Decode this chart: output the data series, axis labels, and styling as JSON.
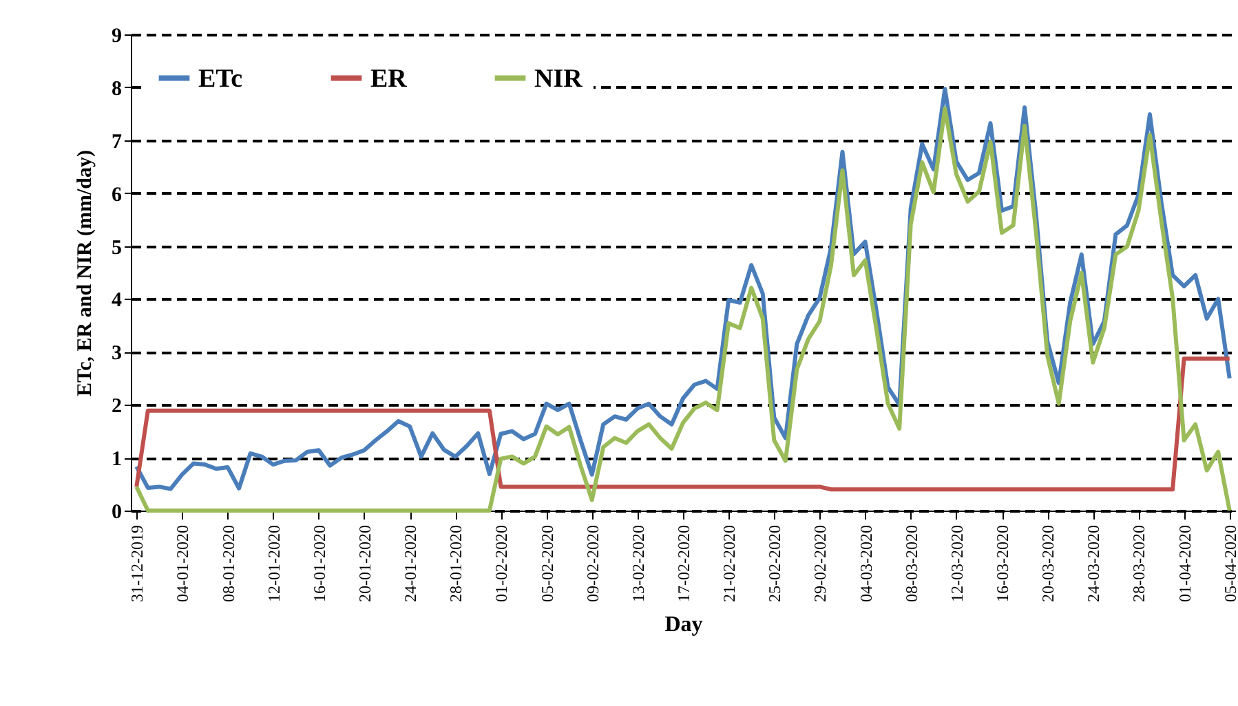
{
  "chart_data": {
    "type": "line",
    "xlabel": "Day",
    "ylabel": "ETc, ER and NIR (mm/day)",
    "x": [
      "2019-12-31",
      "2020-01-01",
      "2020-01-02",
      "2020-01-03",
      "2020-01-04",
      "2020-01-05",
      "2020-01-06",
      "2020-01-07",
      "2020-01-08",
      "2020-01-09",
      "2020-01-10",
      "2020-01-11",
      "2020-01-12",
      "2020-01-13",
      "2020-01-14",
      "2020-01-15",
      "2020-01-16",
      "2020-01-17",
      "2020-01-18",
      "2020-01-19",
      "2020-01-20",
      "2020-01-21",
      "2020-01-22",
      "2020-01-23",
      "2020-01-24",
      "2020-01-25",
      "2020-01-26",
      "2020-01-27",
      "2020-01-28",
      "2020-01-29",
      "2020-01-30",
      "2020-01-31",
      "2020-02-01",
      "2020-02-02",
      "2020-02-03",
      "2020-02-04",
      "2020-02-05",
      "2020-02-06",
      "2020-02-07",
      "2020-02-08",
      "2020-02-09",
      "2020-02-10",
      "2020-02-11",
      "2020-02-12",
      "2020-02-13",
      "2020-02-14",
      "2020-02-15",
      "2020-02-16",
      "2020-02-17",
      "2020-02-18",
      "2020-02-19",
      "2020-02-20",
      "2020-02-21",
      "2020-02-22",
      "2020-02-23",
      "2020-02-24",
      "2020-02-25",
      "2020-02-26",
      "2020-02-27",
      "2020-02-28",
      "2020-02-29",
      "2020-03-01",
      "2020-03-02",
      "2020-03-03",
      "2020-03-04",
      "2020-03-05",
      "2020-03-06",
      "2020-03-07",
      "2020-03-08",
      "2020-03-09",
      "2020-03-10",
      "2020-03-11",
      "2020-03-12",
      "2020-03-13",
      "2020-03-14",
      "2020-03-15",
      "2020-03-16",
      "2020-03-17",
      "2020-03-18",
      "2020-03-19",
      "2020-03-20",
      "2020-03-21",
      "2020-03-22",
      "2020-03-23",
      "2020-03-24",
      "2020-03-25",
      "2020-03-26",
      "2020-03-27",
      "2020-03-28",
      "2020-03-29",
      "2020-03-30",
      "2020-03-31",
      "2020-04-01",
      "2020-04-02",
      "2020-04-03",
      "2020-04-04",
      "2020-04-05"
    ],
    "series": [
      {
        "name": "ETc",
        "color": "#4a7ebb",
        "values": [
          0.83,
          0.43,
          0.45,
          0.41,
          0.68,
          0.89,
          0.87,
          0.79,
          0.82,
          0.42,
          1.08,
          1.02,
          0.87,
          0.94,
          0.95,
          1.11,
          1.14,
          0.85,
          1.0,
          1.06,
          1.14,
          1.33,
          1.5,
          1.69,
          1.59,
          1.02,
          1.46,
          1.15,
          1.02,
          1.22,
          1.46,
          0.69,
          1.45,
          1.5,
          1.35,
          1.45,
          2.02,
          1.9,
          2.02,
          1.33,
          0.68,
          1.63,
          1.78,
          1.72,
          1.93,
          2.02,
          1.78,
          1.63,
          2.12,
          2.38,
          2.45,
          2.3,
          3.98,
          3.93,
          4.64,
          4.1,
          1.76,
          1.37,
          3.15,
          3.69,
          4.02,
          4.97,
          6.78,
          4.85,
          5.08,
          3.76,
          2.33,
          2.0,
          5.71,
          6.93,
          6.45,
          7.97,
          6.6,
          6.25,
          6.38,
          7.32,
          5.67,
          5.75,
          7.62,
          5.6,
          3.2,
          2.41,
          3.93,
          4.84,
          3.15,
          3.58,
          5.22,
          5.39,
          5.97,
          7.49,
          5.84,
          4.45,
          4.24,
          4.45,
          3.63,
          4.0,
          2.5
        ]
      },
      {
        "name": "ER",
        "color": "#c0504d",
        "values": [
          0.45,
          1.89,
          1.89,
          1.89,
          1.89,
          1.89,
          1.89,
          1.89,
          1.89,
          1.89,
          1.89,
          1.89,
          1.89,
          1.89,
          1.89,
          1.89,
          1.89,
          1.89,
          1.89,
          1.89,
          1.89,
          1.89,
          1.89,
          1.89,
          1.89,
          1.89,
          1.89,
          1.89,
          1.89,
          1.89,
          1.89,
          1.89,
          0.45,
          0.45,
          0.45,
          0.45,
          0.45,
          0.45,
          0.45,
          0.45,
          0.45,
          0.45,
          0.45,
          0.45,
          0.45,
          0.45,
          0.45,
          0.45,
          0.45,
          0.45,
          0.45,
          0.45,
          0.45,
          0.45,
          0.45,
          0.45,
          0.45,
          0.45,
          0.45,
          0.45,
          0.45,
          0.4,
          0.4,
          0.4,
          0.4,
          0.4,
          0.4,
          0.4,
          0.4,
          0.4,
          0.4,
          0.4,
          0.4,
          0.4,
          0.4,
          0.4,
          0.4,
          0.4,
          0.4,
          0.4,
          0.4,
          0.4,
          0.4,
          0.4,
          0.4,
          0.4,
          0.4,
          0.4,
          0.4,
          0.4,
          0.4,
          0.4,
          2.87,
          2.87,
          2.87,
          2.87,
          2.87
        ]
      },
      {
        "name": "NIR",
        "color": "#9bbb59",
        "values": [
          0.45,
          0,
          0,
          0,
          0,
          0,
          0,
          0,
          0,
          0,
          0,
          0,
          0,
          0,
          0,
          0,
          0,
          0,
          0,
          0,
          0,
          0,
          0,
          0,
          0,
          0,
          0,
          0,
          0,
          0,
          0,
          0,
          0.98,
          1.02,
          0.89,
          1.02,
          1.59,
          1.44,
          1.58,
          0.85,
          0.2,
          1.2,
          1.37,
          1.28,
          1.5,
          1.63,
          1.37,
          1.17,
          1.66,
          1.93,
          2.04,
          1.9,
          3.54,
          3.45,
          4.21,
          3.63,
          1.33,
          0.94,
          2.67,
          3.24,
          3.58,
          4.63,
          6.43,
          4.45,
          4.73,
          3.41,
          2.02,
          1.55,
          5.41,
          6.58,
          6.02,
          7.6,
          6.36,
          5.84,
          6.03,
          6.97,
          5.25,
          5.39,
          7.27,
          5.27,
          2.93,
          2.02,
          3.58,
          4.49,
          2.8,
          3.45,
          4.84,
          4.99,
          5.67,
          7.1,
          5.49,
          4.02,
          1.33,
          1.63,
          0.76,
          1.11,
          0
        ]
      }
    ],
    "xlim": [
      "2019-12-30T12:00",
      "2020-04-05T12:00"
    ],
    "xticks": [
      {
        "value": "2019-12-31",
        "label": "31-12-2019"
      },
      {
        "value": "2020-01-04",
        "label": "04-01-2020"
      },
      {
        "value": "2020-01-08",
        "label": "08-01-2020"
      },
      {
        "value": "2020-01-12",
        "label": "12-01-2020"
      },
      {
        "value": "2020-01-16",
        "label": "16-01-2020"
      },
      {
        "value": "2020-01-20",
        "label": "20-01-2020"
      },
      {
        "value": "2020-01-24",
        "label": "24-01-2020"
      },
      {
        "value": "2020-01-28",
        "label": "28-01-2020"
      },
      {
        "value": "2020-02-01",
        "label": "01-02-2020"
      },
      {
        "value": "2020-02-05",
        "label": "05-02-2020"
      },
      {
        "value": "2020-02-09",
        "label": "09-02-2020"
      },
      {
        "value": "2020-02-13",
        "label": "13-02-2020"
      },
      {
        "value": "2020-02-17",
        "label": "17-02-2020"
      },
      {
        "value": "2020-02-21",
        "label": "21-02-2020"
      },
      {
        "value": "2020-02-25",
        "label": "25-02-2020"
      },
      {
        "value": "2020-02-29",
        "label": "29-02-2020"
      },
      {
        "value": "2020-03-04",
        "label": "04-03-2020"
      },
      {
        "value": "2020-03-08",
        "label": "08-03-2020"
      },
      {
        "value": "2020-03-12",
        "label": "12-03-2020"
      },
      {
        "value": "2020-03-16",
        "label": "16-03-2020"
      },
      {
        "value": "2020-03-20",
        "label": "20-03-2020"
      },
      {
        "value": "2020-03-24",
        "label": "24-03-2020"
      },
      {
        "value": "2020-03-28",
        "label": "28-03-2020"
      },
      {
        "value": "2020-04-01",
        "label": "01-04-2020"
      },
      {
        "value": "2020-04-05",
        "label": "05-04-2020"
      }
    ],
    "ylim": [
      0,
      9
    ],
    "yticks": [
      0,
      1,
      2,
      3,
      4,
      5,
      6,
      7,
      8,
      9
    ],
    "grid": "y",
    "legend": "top left"
  }
}
